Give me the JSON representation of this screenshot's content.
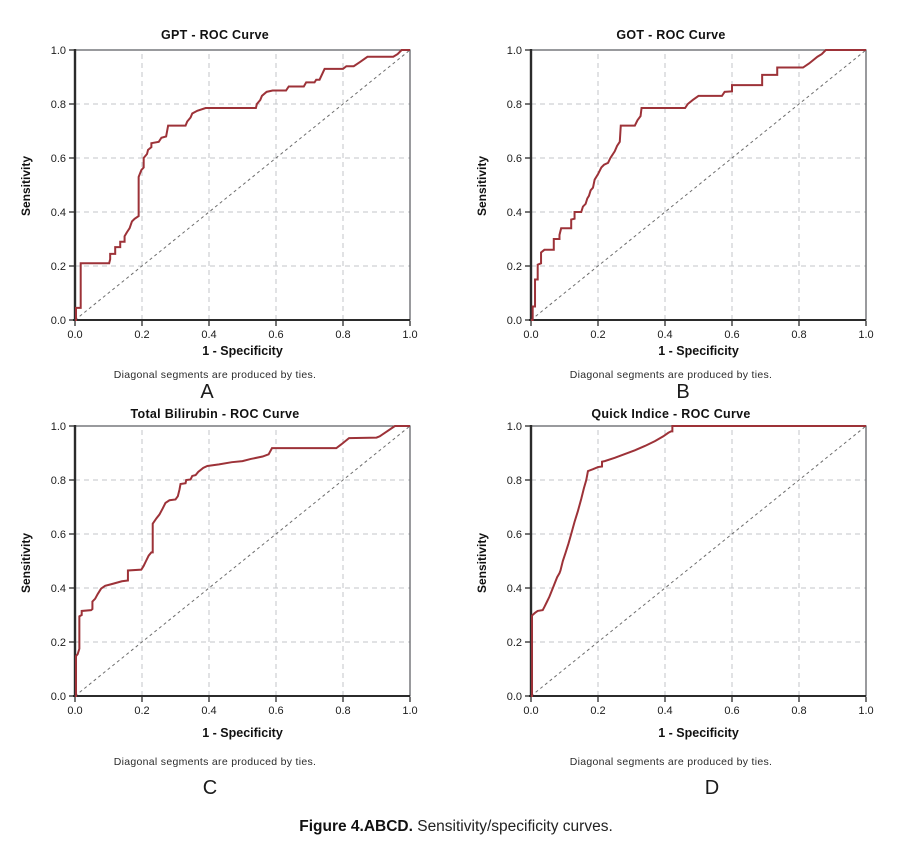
{
  "figure_caption": {
    "bold": "Figure 4.ABCD.",
    "rest": " Sensitivity/specificity curves."
  },
  "style": {
    "curve_color": "#9d3238",
    "grid_color": "#c3c6ca",
    "frame_color": "#55585c",
    "axis_color": "#2b2b2b",
    "diagonal_color": "#6e6e6e",
    "text_color": "#1c1c1c"
  },
  "chart_data": [
    {
      "type": "line",
      "title": "GPT - ROC Curve",
      "panel_label": "A",
      "xlabel": "1 - Specificity",
      "ylabel": "Sensitivity",
      "footnote": "Diagonal segments are produced by ties.",
      "xlim": [
        0,
        1
      ],
      "ylim": [
        0,
        1
      ],
      "xticks": [
        "0.0",
        "0.2",
        "0.4",
        "0.6",
        "0.8",
        "1.0"
      ],
      "yticks": [
        "0.0",
        "0.2",
        "0.4",
        "0.6",
        "0.8",
        "1.0"
      ],
      "grid": "dashed",
      "legend": "none",
      "series": [
        {
          "name": "roc-curve",
          "color": "#9d3238",
          "width": 2,
          "dash": "",
          "points": [
            [
              0,
              0
            ],
            [
              0.003,
              0
            ],
            [
              0.003,
              0.045
            ],
            [
              0.017,
              0.045
            ],
            [
              0.017,
              0.21
            ],
            [
              0.102,
              0.21
            ],
            [
              0.105,
              0.225
            ],
            [
              0.105,
              0.245
            ],
            [
              0.12,
              0.245
            ],
            [
              0.12,
              0.27
            ],
            [
              0.135,
              0.27
            ],
            [
              0.135,
              0.29
            ],
            [
              0.148,
              0.29
            ],
            [
              0.148,
              0.31
            ],
            [
              0.155,
              0.325
            ],
            [
              0.163,
              0.34
            ],
            [
              0.17,
              0.365
            ],
            [
              0.178,
              0.375
            ],
            [
              0.19,
              0.385
            ],
            [
              0.19,
              0.53
            ],
            [
              0.198,
              0.555
            ],
            [
              0.205,
              0.565
            ],
            [
              0.205,
              0.6
            ],
            [
              0.215,
              0.615
            ],
            [
              0.218,
              0.63
            ],
            [
              0.228,
              0.64
            ],
            [
              0.228,
              0.655
            ],
            [
              0.25,
              0.66
            ],
            [
              0.258,
              0.675
            ],
            [
              0.272,
              0.68
            ],
            [
              0.278,
              0.72
            ],
            [
              0.33,
              0.72
            ],
            [
              0.335,
              0.735
            ],
            [
              0.345,
              0.75
            ],
            [
              0.35,
              0.765
            ],
            [
              0.365,
              0.775
            ],
            [
              0.39,
              0.785
            ],
            [
              0.54,
              0.785
            ],
            [
              0.543,
              0.8
            ],
            [
              0.553,
              0.815
            ],
            [
              0.558,
              0.83
            ],
            [
              0.572,
              0.845
            ],
            [
              0.59,
              0.85
            ],
            [
              0.63,
              0.85
            ],
            [
              0.638,
              0.865
            ],
            [
              0.683,
              0.865
            ],
            [
              0.69,
              0.88
            ],
            [
              0.715,
              0.88
            ],
            [
              0.72,
              0.89
            ],
            [
              0.73,
              0.89
            ],
            [
              0.745,
              0.93
            ],
            [
              0.8,
              0.93
            ],
            [
              0.81,
              0.94
            ],
            [
              0.832,
              0.94
            ],
            [
              0.85,
              0.955
            ],
            [
              0.873,
              0.975
            ],
            [
              0.95,
              0.975
            ],
            [
              0.963,
              0.985
            ],
            [
              0.975,
              1
            ],
            [
              1,
              1
            ]
          ]
        },
        {
          "name": "reference-diagonal",
          "color": "#6e6e6e",
          "width": 1,
          "dash": "3,3",
          "points": [
            [
              0,
              0
            ],
            [
              1,
              1
            ]
          ]
        }
      ]
    },
    {
      "type": "line",
      "title": "GOT - ROC Curve",
      "panel_label": "B",
      "xlabel": "1 - Specificity",
      "ylabel": "Sensitivity",
      "footnote": "Diagonal segments are produced by ties.",
      "xlim": [
        0,
        1
      ],
      "ylim": [
        0,
        1
      ],
      "xticks": [
        "0.0",
        "0.2",
        "0.4",
        "0.6",
        "0.8",
        "1.0"
      ],
      "yticks": [
        "0.0",
        "0.2",
        "0.4",
        "0.6",
        "0.8",
        "1.0"
      ],
      "grid": "dashed",
      "legend": "none",
      "series": [
        {
          "name": "roc-curve",
          "color": "#9d3238",
          "width": 2,
          "dash": "",
          "points": [
            [
              0,
              0
            ],
            [
              0.005,
              0
            ],
            [
              0.005,
              0.05
            ],
            [
              0.012,
              0.05
            ],
            [
              0.012,
              0.15
            ],
            [
              0.02,
              0.15
            ],
            [
              0.02,
              0.205
            ],
            [
              0.03,
              0.21
            ],
            [
              0.03,
              0.25
            ],
            [
              0.04,
              0.26
            ],
            [
              0.068,
              0.26
            ],
            [
              0.068,
              0.3
            ],
            [
              0.085,
              0.3
            ],
            [
              0.085,
              0.315
            ],
            [
              0.09,
              0.34
            ],
            [
              0.12,
              0.34
            ],
            [
              0.12,
              0.372
            ],
            [
              0.13,
              0.375
            ],
            [
              0.13,
              0.4
            ],
            [
              0.15,
              0.4
            ],
            [
              0.155,
              0.42
            ],
            [
              0.163,
              0.43
            ],
            [
              0.168,
              0.45
            ],
            [
              0.173,
              0.46
            ],
            [
              0.178,
              0.48
            ],
            [
              0.185,
              0.49
            ],
            [
              0.19,
              0.52
            ],
            [
              0.2,
              0.54
            ],
            [
              0.21,
              0.565
            ],
            [
              0.218,
              0.575
            ],
            [
              0.23,
              0.582
            ],
            [
              0.237,
              0.6
            ],
            [
              0.25,
              0.625
            ],
            [
              0.257,
              0.645
            ],
            [
              0.265,
              0.66
            ],
            [
              0.268,
              0.72
            ],
            [
              0.31,
              0.72
            ],
            [
              0.318,
              0.74
            ],
            [
              0.327,
              0.755
            ],
            [
              0.33,
              0.785
            ],
            [
              0.46,
              0.785
            ],
            [
              0.468,
              0.8
            ],
            [
              0.483,
              0.815
            ],
            [
              0.5,
              0.83
            ],
            [
              0.57,
              0.83
            ],
            [
              0.578,
              0.845
            ],
            [
              0.6,
              0.847
            ],
            [
              0.6,
              0.87
            ],
            [
              0.69,
              0.87
            ],
            [
              0.69,
              0.908
            ],
            [
              0.735,
              0.908
            ],
            [
              0.735,
              0.935
            ],
            [
              0.812,
              0.935
            ],
            [
              0.83,
              0.95
            ],
            [
              0.855,
              0.975
            ],
            [
              0.868,
              0.985
            ],
            [
              0.88,
              1
            ],
            [
              1,
              1
            ]
          ]
        },
        {
          "name": "reference-diagonal",
          "color": "#6e6e6e",
          "width": 1,
          "dash": "3,3",
          "points": [
            [
              0,
              0
            ],
            [
              1,
              1
            ]
          ]
        }
      ]
    },
    {
      "type": "line",
      "title": "Total Bilirubin - ROC Curve",
      "panel_label": "C",
      "xlabel": "1 - Specificity",
      "ylabel": "Sensitivity",
      "footnote": "Diagonal segments are produced by ties.",
      "xlim": [
        0,
        1
      ],
      "ylim": [
        0,
        1
      ],
      "xticks": [
        "0.0",
        "0.2",
        "0.4",
        "0.6",
        "0.8",
        "1.0"
      ],
      "yticks": [
        "0.0",
        "0.2",
        "0.4",
        "0.6",
        "0.8",
        "1.0"
      ],
      "grid": "dashed",
      "legend": "none",
      "series": [
        {
          "name": "roc-curve",
          "color": "#9d3238",
          "width": 2,
          "dash": "",
          "points": [
            [
              0,
              0
            ],
            [
              0.003,
              0
            ],
            [
              0.003,
              0.148
            ],
            [
              0.008,
              0.155
            ],
            [
              0.013,
              0.175
            ],
            [
              0.013,
              0.295
            ],
            [
              0.02,
              0.3
            ],
            [
              0.02,
              0.315
            ],
            [
              0.048,
              0.318
            ],
            [
              0.052,
              0.322
            ],
            [
              0.052,
              0.35
            ],
            [
              0.06,
              0.36
            ],
            [
              0.068,
              0.378
            ],
            [
              0.078,
              0.398
            ],
            [
              0.09,
              0.408
            ],
            [
              0.105,
              0.413
            ],
            [
              0.12,
              0.418
            ],
            [
              0.14,
              0.425
            ],
            [
              0.158,
              0.428
            ],
            [
              0.158,
              0.465
            ],
            [
              0.198,
              0.468
            ],
            [
              0.205,
              0.482
            ],
            [
              0.212,
              0.5
            ],
            [
              0.22,
              0.52
            ],
            [
              0.228,
              0.532
            ],
            [
              0.232,
              0.532
            ],
            [
              0.232,
              0.638
            ],
            [
              0.243,
              0.658
            ],
            [
              0.252,
              0.672
            ],
            [
              0.262,
              0.695
            ],
            [
              0.27,
              0.715
            ],
            [
              0.282,
              0.725
            ],
            [
              0.3,
              0.728
            ],
            [
              0.307,
              0.74
            ],
            [
              0.312,
              0.765
            ],
            [
              0.315,
              0.785
            ],
            [
              0.33,
              0.788
            ],
            [
              0.332,
              0.8
            ],
            [
              0.345,
              0.802
            ],
            [
              0.35,
              0.815
            ],
            [
              0.36,
              0.818
            ],
            [
              0.368,
              0.83
            ],
            [
              0.383,
              0.845
            ],
            [
              0.395,
              0.852
            ],
            [
              0.43,
              0.858
            ],
            [
              0.468,
              0.866
            ],
            [
              0.5,
              0.87
            ],
            [
              0.525,
              0.878
            ],
            [
              0.56,
              0.887
            ],
            [
              0.578,
              0.895
            ],
            [
              0.588,
              0.918
            ],
            [
              0.78,
              0.918
            ],
            [
              0.795,
              0.932
            ],
            [
              0.818,
              0.955
            ],
            [
              0.9,
              0.957
            ],
            [
              0.91,
              0.962
            ],
            [
              0.955,
              1
            ],
            [
              1,
              1
            ]
          ]
        },
        {
          "name": "reference-diagonal",
          "color": "#6e6e6e",
          "width": 1,
          "dash": "3,3",
          "points": [
            [
              0,
              0
            ],
            [
              1,
              1
            ]
          ]
        }
      ]
    },
    {
      "type": "line",
      "title": "Quick Indice - ROC Curve",
      "panel_label": "D",
      "xlabel": "1 - Specificity",
      "ylabel": "Sensitivity",
      "footnote": "Diagonal segments are produced by ties.",
      "xlim": [
        0,
        1
      ],
      "ylim": [
        0,
        1
      ],
      "xticks": [
        "0.0",
        "0.2",
        "0.4",
        "0.6",
        "0.8",
        "1.0"
      ],
      "yticks": [
        "0.0",
        "0.2",
        "0.4",
        "0.6",
        "0.8",
        "1.0"
      ],
      "grid": "dashed",
      "legend": "none",
      "series": [
        {
          "name": "roc-curve",
          "color": "#9d3238",
          "width": 2,
          "dash": "",
          "points": [
            [
              0,
              0
            ],
            [
              0.003,
              0
            ],
            [
              0.003,
              0.298
            ],
            [
              0.012,
              0.308
            ],
            [
              0.02,
              0.315
            ],
            [
              0.035,
              0.318
            ],
            [
              0.04,
              0.33
            ],
            [
              0.048,
              0.35
            ],
            [
              0.055,
              0.368
            ],
            [
              0.062,
              0.39
            ],
            [
              0.07,
              0.415
            ],
            [
              0.078,
              0.44
            ],
            [
              0.085,
              0.455
            ],
            [
              0.088,
              0.465
            ],
            [
              0.095,
              0.5
            ],
            [
              0.103,
              0.53
            ],
            [
              0.112,
              0.565
            ],
            [
              0.12,
              0.6
            ],
            [
              0.13,
              0.645
            ],
            [
              0.14,
              0.685
            ],
            [
              0.15,
              0.73
            ],
            [
              0.158,
              0.77
            ],
            [
              0.165,
              0.8
            ],
            [
              0.17,
              0.833
            ],
            [
              0.185,
              0.84
            ],
            [
              0.2,
              0.848
            ],
            [
              0.212,
              0.85
            ],
            [
              0.212,
              0.868
            ],
            [
              0.22,
              0.87
            ],
            [
              0.25,
              0.882
            ],
            [
              0.28,
              0.896
            ],
            [
              0.31,
              0.91
            ],
            [
              0.34,
              0.926
            ],
            [
              0.37,
              0.944
            ],
            [
              0.395,
              0.962
            ],
            [
              0.41,
              0.975
            ],
            [
              0.418,
              0.98
            ],
            [
              0.422,
              0.98
            ],
            [
              0.422,
              1
            ],
            [
              1,
              1
            ]
          ]
        },
        {
          "name": "reference-diagonal",
          "color": "#6e6e6e",
          "width": 1,
          "dash": "3,3",
          "points": [
            [
              0,
              0
            ],
            [
              1,
              1
            ]
          ]
        }
      ]
    }
  ]
}
